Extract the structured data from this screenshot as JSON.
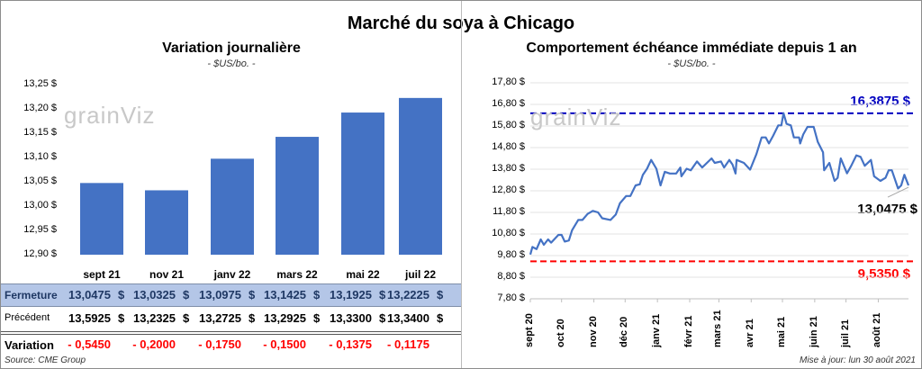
{
  "title": "Marché du soya à Chicago",
  "source": "Source: CME Group",
  "updated": "Mise à jour: lun 30 août 2021",
  "logo": "grainViz",
  "chart_data": [
    {
      "type": "bar",
      "title": "Variation journalière",
      "subtitle": "- $US/bo. -",
      "categories": [
        "sept 21",
        "nov 21",
        "janv 22",
        "mars 22",
        "mai 22",
        "juil 22"
      ],
      "values": [
        13.0475,
        13.0325,
        13.0975,
        13.1425,
        13.1925,
        13.2225
      ],
      "ylim": [
        12.9,
        13.25
      ],
      "yticks": [
        "13,25 $",
        "13,20 $",
        "13,15 $",
        "13,10 $",
        "13,05 $",
        "13,00 $",
        "12,95 $",
        "12,90 $"
      ],
      "ytick_values": [
        13.25,
        13.2,
        13.15,
        13.1,
        13.05,
        13.0,
        12.95,
        12.9
      ],
      "grid": false,
      "bar_color": "#4472c4",
      "table": {
        "rows": [
          {
            "label": "Fermeture",
            "values": [
              "13,0475",
              "13,0325",
              "13,0975",
              "13,1425",
              "13,1925",
              "13,2225"
            ],
            "unit": "$"
          },
          {
            "label": "Précédent",
            "values": [
              "13,5925",
              "13,2325",
              "13,2725",
              "13,2925",
              "13,3300",
              "13,3400"
            ],
            "unit": "$"
          },
          {
            "label": "Variation",
            "values": [
              "- 0,5450",
              "- 0,2000",
              "- 0,1750",
              "- 0,1500",
              "- 0,1375",
              "- 0,1175"
            ]
          }
        ],
        "highlight_color": "#b4c6e7",
        "negative_color": "#ff0000"
      }
    },
    {
      "type": "line",
      "title": "Comportement  échéance immédiate depuis 1 an",
      "subtitle": "- $US/bo. -",
      "ylim": [
        7.8,
        17.8
      ],
      "yticks": [
        "17,80 $",
        "16,80 $",
        "15,80 $",
        "14,80 $",
        "13,80 $",
        "12,80 $",
        "11,80 $",
        "10,80 $",
        "9,80 $",
        "8,80 $",
        "7,80 $"
      ],
      "ytick_values": [
        17.8,
        16.8,
        15.8,
        14.8,
        13.8,
        12.8,
        11.8,
        10.8,
        9.8,
        8.8,
        7.8
      ],
      "xlim": [
        "2020-09-01",
        "2021-08-30"
      ],
      "xticks": [
        "sept 20",
        "oct 20",
        "nov 20",
        "déc 20",
        "janv 21",
        "févr 21",
        "mars 21",
        "avr 21",
        "mai 21",
        "juin 21",
        "juil 21",
        "août 21"
      ],
      "xtick_dates": [
        "2020-09-01",
        "2020-10-01",
        "2020-11-01",
        "2020-12-01",
        "2021-01-01",
        "2021-02-01",
        "2021-03-01",
        "2021-04-01",
        "2021-05-01",
        "2021-06-01",
        "2021-07-01",
        "2021-08-01"
      ],
      "grid": true,
      "line_color": "#4472c4",
      "max": {
        "value": 16.3875,
        "label": "16,3875 $",
        "color": "#0000c0"
      },
      "min": {
        "value": 9.535,
        "label": "9,5350 $",
        "color": "#ff0000"
      },
      "last": {
        "value": 13.0475,
        "label": "13,0475 $"
      },
      "points": [
        [
          "2020-09-01",
          9.85
        ],
        [
          "2020-09-03",
          10.2
        ],
        [
          "2020-09-07",
          10.1
        ],
        [
          "2020-09-11",
          10.55
        ],
        [
          "2020-09-14",
          10.3
        ],
        [
          "2020-09-18",
          10.55
        ],
        [
          "2020-09-21",
          10.4
        ],
        [
          "2020-09-28",
          10.76
        ],
        [
          "2020-10-01",
          10.76
        ],
        [
          "2020-10-04",
          10.45
        ],
        [
          "2020-10-08",
          10.5
        ],
        [
          "2020-10-11",
          10.97
        ],
        [
          "2020-10-17",
          11.45
        ],
        [
          "2020-10-21",
          11.45
        ],
        [
          "2020-10-26",
          11.73
        ],
        [
          "2020-10-31",
          11.87
        ],
        [
          "2020-11-05",
          11.8
        ],
        [
          "2020-11-09",
          11.53
        ],
        [
          "2020-11-17",
          11.45
        ],
        [
          "2020-11-22",
          11.7
        ],
        [
          "2020-11-26",
          12.22
        ],
        [
          "2020-12-02",
          12.56
        ],
        [
          "2020-12-06",
          12.56
        ],
        [
          "2020-12-11",
          13.05
        ],
        [
          "2020-12-15",
          13.1
        ],
        [
          "2020-12-18",
          13.54
        ],
        [
          "2020-12-22",
          13.82
        ],
        [
          "2020-12-26",
          14.23
        ],
        [
          "2020-12-31",
          13.82
        ],
        [
          "2021-01-04",
          13.05
        ],
        [
          "2021-01-08",
          13.68
        ],
        [
          "2021-01-13",
          13.6
        ],
        [
          "2021-01-19",
          13.6
        ],
        [
          "2021-01-23",
          13.88
        ],
        [
          "2021-01-24",
          13.47
        ],
        [
          "2021-01-29",
          13.82
        ],
        [
          "2021-02-02",
          13.75
        ],
        [
          "2021-02-08",
          14.16
        ],
        [
          "2021-02-13",
          13.88
        ],
        [
          "2021-02-22",
          14.3
        ],
        [
          "2021-02-25",
          14.09
        ],
        [
          "2021-03-03",
          14.16
        ],
        [
          "2021-03-06",
          13.88
        ],
        [
          "2021-03-11",
          14.23
        ],
        [
          "2021-03-14",
          14.02
        ],
        [
          "2021-03-17",
          13.6
        ],
        [
          "2021-03-18",
          14.23
        ],
        [
          "2021-03-25",
          14.09
        ],
        [
          "2021-03-31",
          13.78
        ],
        [
          "2021-04-06",
          14.5
        ],
        [
          "2021-04-11",
          15.27
        ],
        [
          "2021-04-15",
          15.27
        ],
        [
          "2021-04-18",
          14.99
        ],
        [
          "2021-04-22",
          15.34
        ],
        [
          "2021-04-27",
          15.83
        ],
        [
          "2021-04-30",
          15.83
        ],
        [
          "2021-05-02",
          16.39
        ],
        [
          "2021-05-05",
          15.9
        ],
        [
          "2021-05-09",
          15.83
        ],
        [
          "2021-05-12",
          15.27
        ],
        [
          "2021-05-17",
          15.27
        ],
        [
          "2021-05-18",
          14.99
        ],
        [
          "2021-05-21",
          15.41
        ],
        [
          "2021-05-25",
          15.76
        ],
        [
          "2021-05-31",
          15.76
        ],
        [
          "2021-06-04",
          15.06
        ],
        [
          "2021-06-09",
          14.58
        ],
        [
          "2021-06-10",
          13.75
        ],
        [
          "2021-06-15",
          14.09
        ],
        [
          "2021-06-20",
          13.26
        ],
        [
          "2021-06-23",
          13.4
        ],
        [
          "2021-06-26",
          14.3
        ],
        [
          "2021-07-02",
          13.61
        ],
        [
          "2021-07-06",
          13.96
        ],
        [
          "2021-07-11",
          14.44
        ],
        [
          "2021-07-15",
          14.37
        ],
        [
          "2021-07-19",
          13.96
        ],
        [
          "2021-07-25",
          14.23
        ],
        [
          "2021-07-28",
          13.47
        ],
        [
          "2021-08-03",
          13.26
        ],
        [
          "2021-08-08",
          13.4
        ],
        [
          "2021-08-11",
          13.75
        ],
        [
          "2021-08-14",
          13.75
        ],
        [
          "2021-08-20",
          12.91
        ],
        [
          "2021-08-23",
          13.05
        ],
        [
          "2021-08-26",
          13.54
        ],
        [
          "2021-08-30",
          13.05
        ]
      ]
    }
  ]
}
